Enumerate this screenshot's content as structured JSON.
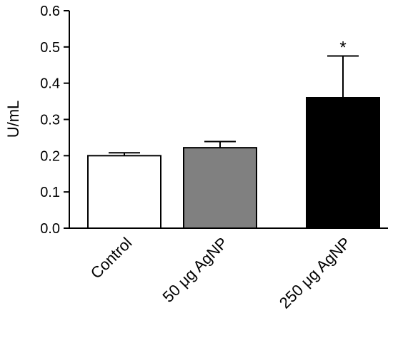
{
  "chart_data": {
    "type": "bar",
    "categories": [
      "Control",
      "50 μg AgNP",
      "250 μg AgNP"
    ],
    "values": [
      0.2,
      0.222,
      0.36
    ],
    "errors": [
      0.008,
      0.017,
      0.115
    ],
    "colors": [
      "#ffffff",
      "#808080",
      "#000000"
    ],
    "annotations": [
      "",
      "",
      "*"
    ],
    "ylabel": "U/mL",
    "xlabel": "",
    "title": "",
    "ylim": [
      0,
      0.6
    ],
    "yticks": [
      "0.0",
      "0.1",
      "0.2",
      "0.3",
      "0.4",
      "0.5",
      "0.6"
    ],
    "grid": false
  }
}
